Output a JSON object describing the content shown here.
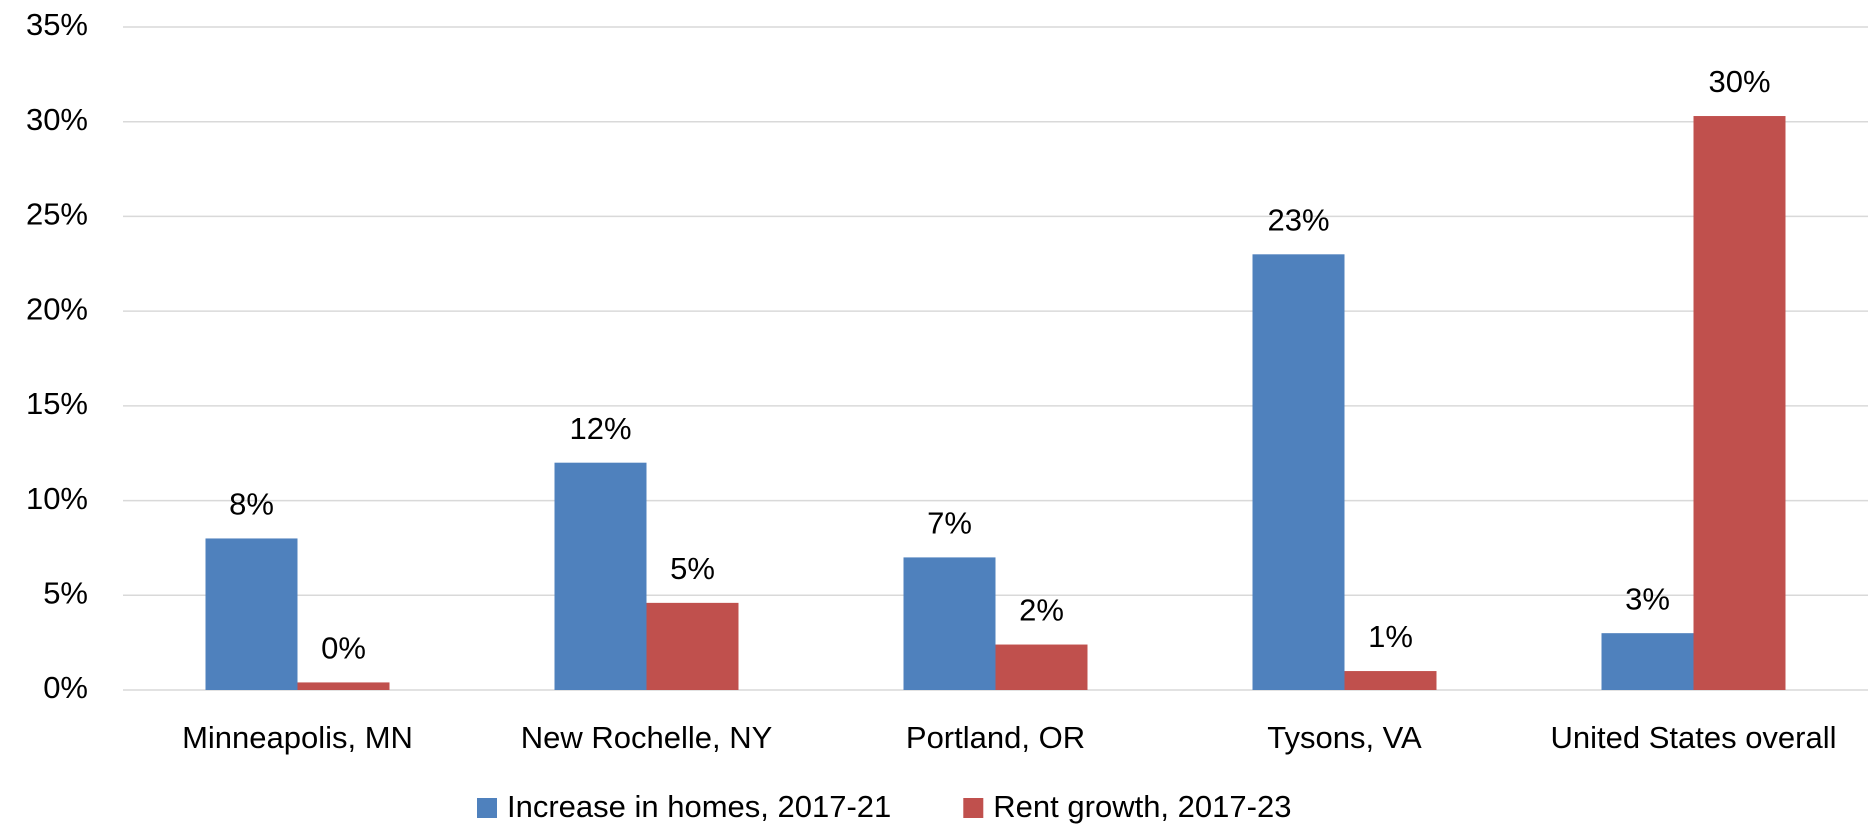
{
  "chart_data": {
    "type": "bar",
    "categories": [
      "Minneapolis, MN",
      "New Rochelle, NY",
      "Portland, OR",
      "Tysons, VA",
      "United States overall"
    ],
    "series": [
      {
        "name": "Increase in homes, 2017-21",
        "color": "#4f81bd",
        "values": [
          8,
          12,
          7,
          23,
          3
        ],
        "value_labels": [
          "8%",
          "12%",
          "7%",
          "23%",
          "3%"
        ]
      },
      {
        "name": "Rent growth, 2017-23",
        "color": "#c0504d",
        "values": [
          0.4,
          4.6,
          2.4,
          1.0,
          30.3
        ],
        "value_labels": [
          "0%",
          "5%",
          "2%",
          "1%",
          "30%"
        ]
      }
    ],
    "ylim": [
      0,
      35
    ],
    "yticks": [
      {
        "value": 0,
        "label": "0%"
      },
      {
        "value": 5,
        "label": "5%"
      },
      {
        "value": 10,
        "label": "10%"
      },
      {
        "value": 15,
        "label": "15%"
      },
      {
        "value": 20,
        "label": "20%"
      },
      {
        "value": 25,
        "label": "25%"
      },
      {
        "value": 30,
        "label": "30%"
      },
      {
        "value": 35,
        "label": "35%"
      }
    ],
    "grid": true,
    "legend": "bottom"
  }
}
